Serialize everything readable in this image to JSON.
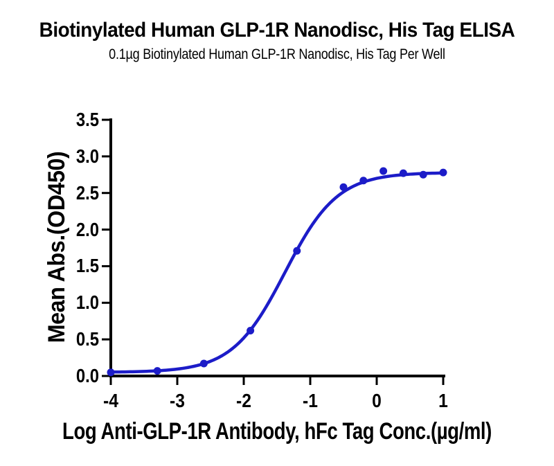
{
  "chart_data": {
    "type": "scatter",
    "title": "Biotinylated Human GLP-1R Nanodisc, His Tag ELISA",
    "subtitle": "0.1µg Biotinylated Human GLP-1R Nanodisc, His Tag Per Well",
    "xlabel": "Log Anti-GLP-1R Antibody, hFc Tag Conc.(µg/ml)",
    "ylabel": "Mean Abs.(OD450)",
    "xlim": [
      -4,
      1
    ],
    "ylim": [
      0,
      3.5
    ],
    "x_ticks": [
      "-4",
      "-3",
      "-2",
      "-1",
      "0",
      "1"
    ],
    "y_ticks": [
      "0.0",
      "0.5",
      "1.0",
      "1.5",
      "2.0",
      "2.5",
      "3.0",
      "3.5"
    ],
    "grid": false,
    "legend": "none",
    "axis_color": "#000000",
    "series": [
      {
        "name": "Anti-GLP-1R Antibody, hFc Tag",
        "marker": "circle",
        "color": "#1c1cc8",
        "x": [
          -4.0,
          -3.3,
          -2.6,
          -1.9,
          -1.2,
          -0.5,
          -0.2,
          0.1,
          0.4,
          0.7,
          1.0
        ],
        "y": [
          0.05,
          0.07,
          0.17,
          0.62,
          1.71,
          2.58,
          2.67,
          2.8,
          2.77,
          2.75,
          2.78
        ],
        "fit_curve": {
          "model": "4PL",
          "bottom": 0.05,
          "top": 2.78,
          "hill_slope": 1.1,
          "log_ec50": -1.38
        }
      }
    ]
  }
}
